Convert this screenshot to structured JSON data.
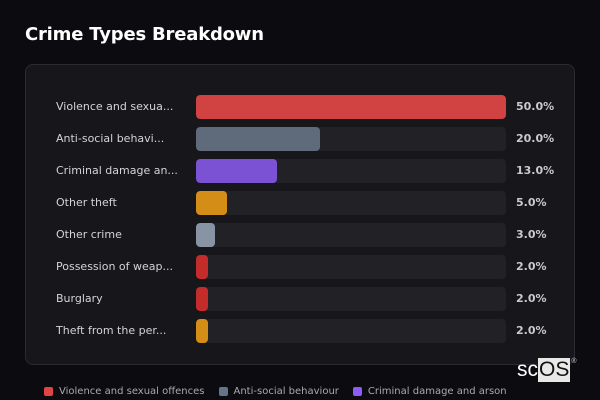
{
  "header": {
    "title": "Crime Types Breakdown"
  },
  "rows": [
    {
      "label": "Violence and sexua...",
      "pct": "50.0%",
      "value": 50.0,
      "color": "#d14343"
    },
    {
      "label": "Anti-social behavi...",
      "pct": "20.0%",
      "value": 20.0,
      "color": "#5f6b7a"
    },
    {
      "label": "Criminal damage an...",
      "pct": "13.0%",
      "value": 13.0,
      "color": "#7b52d4"
    },
    {
      "label": "Other theft",
      "pct": "5.0%",
      "value": 5.0,
      "color": "#d48d17"
    },
    {
      "label": "Other crime",
      "pct": "3.0%",
      "value": 3.0,
      "color": "#8893a4"
    },
    {
      "label": "Possession of weap...",
      "pct": "2.0%",
      "value": 2.0,
      "color": "#c42c2c"
    },
    {
      "label": "Burglary",
      "pct": "2.0%",
      "value": 2.0,
      "color": "#c42c2c"
    },
    {
      "label": "Theft from the per...",
      "pct": "2.0%",
      "value": 2.0,
      "color": "#d48d17"
    }
  ],
  "legend": [
    {
      "label": "Violence and sexual offences",
      "color": "#e04545"
    },
    {
      "label": "Anti-social behaviour",
      "color": "#64748b"
    },
    {
      "label": "Criminal damage and arson",
      "color": "#8b5cf6"
    }
  ],
  "watermark": {
    "prefix": "sc",
    "boxed": "OS",
    "mark": "®"
  },
  "chart_data": {
    "type": "bar",
    "orientation": "horizontal",
    "title": "Crime Types Breakdown",
    "categories": [
      "Violence and sexual offences",
      "Anti-social behaviour",
      "Criminal damage and arson",
      "Other theft",
      "Other crime",
      "Possession of weapons",
      "Burglary",
      "Theft from the person"
    ],
    "values": [
      50.0,
      20.0,
      13.0,
      5.0,
      3.0,
      2.0,
      2.0,
      2.0
    ],
    "value_labels": [
      "50.0%",
      "20.0%",
      "13.0%",
      "5.0%",
      "3.0%",
      "2.0%",
      "2.0%",
      "2.0%"
    ],
    "xlabel": "",
    "ylabel": "",
    "xlim": [
      0,
      50
    ],
    "grid": false,
    "legend_position": "bottom"
  }
}
